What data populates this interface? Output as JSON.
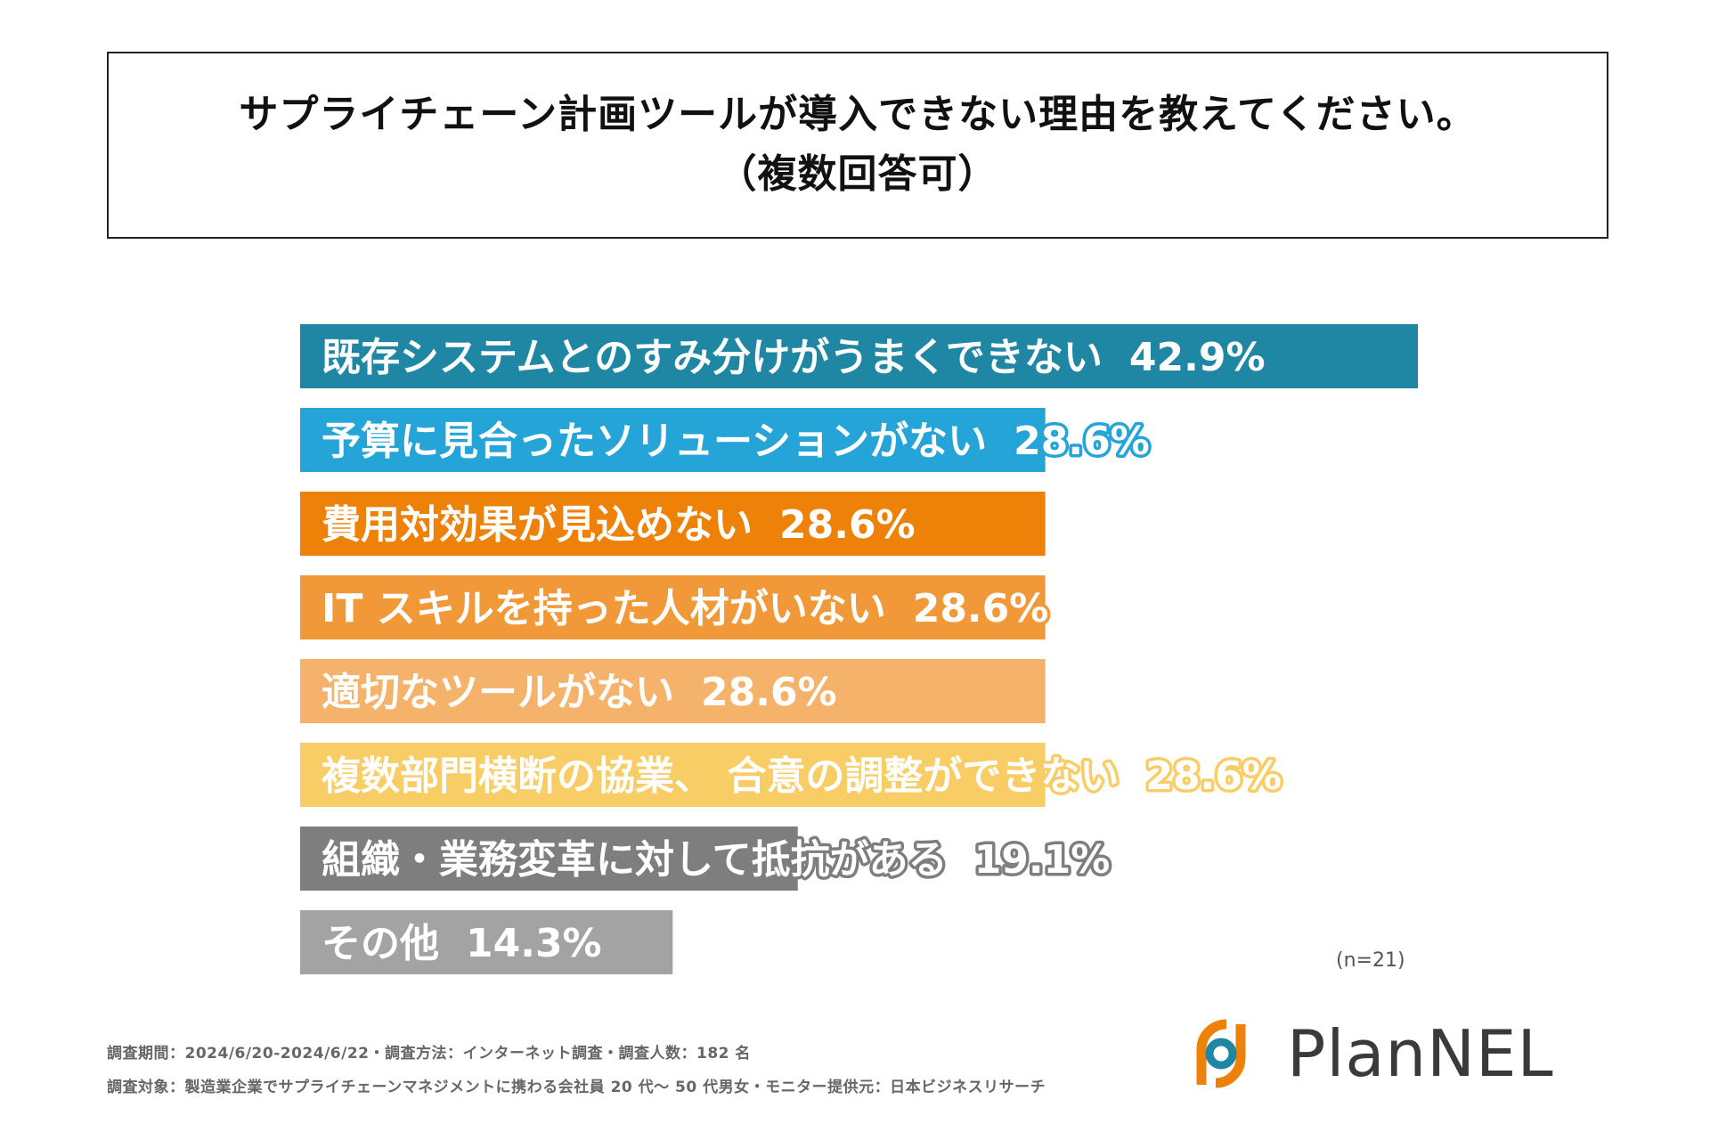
{
  "title": {
    "line1": "サプライチェーン計画ツールが導入できない理由を教えてください。",
    "line2": "（複数回答可）"
  },
  "chart_data": {
    "type": "bar",
    "orientation": "horizontal",
    "categories": [
      "既存システムとのすみ分けがうまくできない",
      "予算に見合ったソリューションがない",
      "費用対効果が見込めない",
      "IT スキルを持った人材がいない",
      "適切なツールがない",
      "複数部門横断の協業、 合意の調整ができない",
      "組織・業務変革に対して抵抗がある",
      "その他"
    ],
    "values": [
      42.9,
      28.6,
      28.6,
      28.6,
      28.6,
      28.6,
      19.1,
      14.3
    ],
    "value_labels": [
      "42.9%",
      "28.6%",
      "28.6%",
      "28.6%",
      "28.6%",
      "28.6%",
      "19.1%",
      "14.3%"
    ],
    "colors": [
      "#1f87a3",
      "#25a4d8",
      "#ee8209",
      "#f19838",
      "#f4b26a",
      "#f8cd66",
      "#7e7e7e",
      "#a3a3a3"
    ],
    "xlim": [
      0,
      42.9
    ],
    "legend": "none",
    "grid": false,
    "note": "(n=21)"
  },
  "footer": {
    "line1": "調査期間：2024/6/20-2024/6/22・調査方法：インターネット調査・調査人数：182 名",
    "line2": "調査対象：製造業企業でサプライチェーンマネジメントに携わる会社員 20 代〜 50 代男女・モニター提供元：日本ビジネスリサーチ"
  },
  "logo": {
    "text": "PlanNEL",
    "colors": {
      "orange": "#ee8209",
      "blue": "#1f87a3"
    }
  }
}
